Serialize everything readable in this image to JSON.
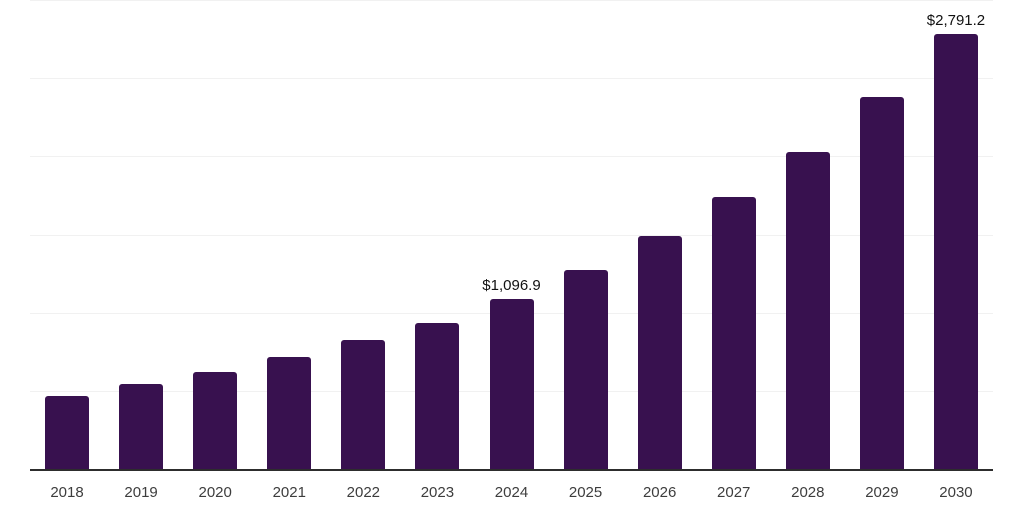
{
  "page": {
    "background": "#ffffff"
  },
  "chart_data": {
    "type": "bar",
    "title": "",
    "xlabel": "",
    "ylabel": "",
    "categories": [
      "2018",
      "2019",
      "2020",
      "2021",
      "2022",
      "2023",
      "2024",
      "2025",
      "2026",
      "2027",
      "2028",
      "2029",
      "2030"
    ],
    "values": [
      473,
      548,
      629,
      721,
      831,
      942,
      1096.9,
      1280,
      1494,
      1744,
      2036,
      2384,
      2791.2
    ],
    "data_labels": [
      "",
      "",
      "",
      "",
      "",
      "",
      "$1,096.9",
      "",
      "",
      "",
      "",
      "",
      "$2,791.2"
    ],
    "ylim": [
      0,
      3000
    ],
    "gridline_step": 500,
    "grid": "horizontal",
    "legend": "none",
    "y_axis_tick_labels_visible": false,
    "colors": {
      "bar": "#38114F",
      "axis": "#2d2d2d",
      "gridline": "#f1f1f1",
      "tick_label": "#3d3d3d",
      "data_label": "#111111",
      "background": "#ffffff"
    }
  }
}
